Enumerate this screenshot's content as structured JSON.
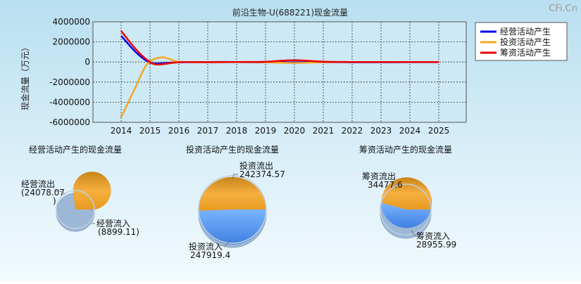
{
  "watermark": "CFi.Cn",
  "chart_data": [
    {
      "type": "line",
      "title": "前沿生物-U(688221)现金流量",
      "ylabel": "现金流量（万元）",
      "xlabel": "",
      "x": [
        2014,
        2015,
        2016,
        2017,
        2018,
        2019,
        2020,
        2021,
        2022,
        2023,
        2024,
        2025
      ],
      "x_ticks": [
        "2014",
        "2015",
        "2016",
        "2017",
        "2018",
        "2019",
        "2020",
        "2021",
        "2022",
        "2023",
        "2024",
        "2025"
      ],
      "ylim": [
        -6000000,
        4000000
      ],
      "y_ticks": [
        "4000000",
        "2000000",
        "0",
        "-2000000",
        "-4000000",
        "-6000000"
      ],
      "y_tick_values": [
        4000000,
        2000000,
        0,
        -2000000,
        -4000000,
        -6000000
      ],
      "grid": true,
      "legend_position": "right",
      "series": [
        {
          "name": "经营活动产生",
          "color": "#0000ee",
          "points": [
            [
              2014,
              2600000
            ],
            [
              2014.5,
              1000000
            ],
            [
              2014.9,
              80000
            ],
            [
              2015.2,
              -150000
            ],
            [
              2016,
              -30000
            ],
            [
              2017,
              0
            ],
            [
              2018,
              0
            ],
            [
              2019,
              -40000
            ],
            [
              2020,
              -30000
            ],
            [
              2021,
              -20000
            ],
            [
              2022,
              -20000
            ],
            [
              2023,
              -20000
            ],
            [
              2024,
              -15000
            ],
            [
              2025,
              -15000
            ]
          ]
        },
        {
          "name": "投资活动产生",
          "color": "#f5a623",
          "points": [
            [
              2014,
              -5500000
            ],
            [
              2014.5,
              -2500000
            ],
            [
              2014.9,
              -200000
            ],
            [
              2015.35,
              450000
            ],
            [
              2015.7,
              280000
            ],
            [
              2016,
              20000
            ],
            [
              2017,
              -20000
            ],
            [
              2018,
              0
            ],
            [
              2019,
              -30000
            ],
            [
              2020,
              -100000
            ],
            [
              2021,
              -20000
            ],
            [
              2022,
              0
            ],
            [
              2023,
              0
            ],
            [
              2024,
              0
            ],
            [
              2025,
              0
            ]
          ]
        },
        {
          "name": "筹资活动产生",
          "color": "#ee0000",
          "points": [
            [
              2014,
              3100000
            ],
            [
              2014.5,
              1300000
            ],
            [
              2014.9,
              200000
            ],
            [
              2015.25,
              -250000
            ],
            [
              2016,
              -20000
            ],
            [
              2017,
              -20000
            ],
            [
              2018,
              0
            ],
            [
              2019,
              20000
            ],
            [
              2020,
              180000
            ],
            [
              2021,
              30000
            ],
            [
              2022,
              0
            ],
            [
              2023,
              0
            ],
            [
              2024,
              0
            ],
            [
              2025,
              0
            ]
          ]
        }
      ]
    },
    {
      "type": "pie",
      "title": "经营活动产生的现金流量",
      "slices": [
        {
          "label": "经营流出",
          "value": 24078.07,
          "value_lines": [
            "(24078.07",
            ")"
          ],
          "color": "#f0a830"
        },
        {
          "label": "经营流入",
          "value": 8899.11,
          "value_lines": [
            "(8899.11)"
          ],
          "color": "#5b9cf0"
        }
      ]
    },
    {
      "type": "pie",
      "title": "投资活动产生的现金流量",
      "slices": [
        {
          "label": "投资流出",
          "value": 242374.57,
          "value_lines": [
            "242374.57"
          ],
          "color": "#f0a830"
        },
        {
          "label": "投资流入",
          "value": 247919.4,
          "value_lines": [
            "247919.4"
          ],
          "color": "#5b9cf0"
        }
      ]
    },
    {
      "type": "pie",
      "title": "筹资活动产生的现金流量",
      "slices": [
        {
          "label": "筹资流出",
          "value": 34477.6,
          "value_lines": [
            "34477.6"
          ],
          "color": "#f0a830"
        },
        {
          "label": "筹资流入",
          "value": 28955.99,
          "value_lines": [
            "28955.99"
          ],
          "color": "#5b9cf0"
        }
      ]
    }
  ]
}
